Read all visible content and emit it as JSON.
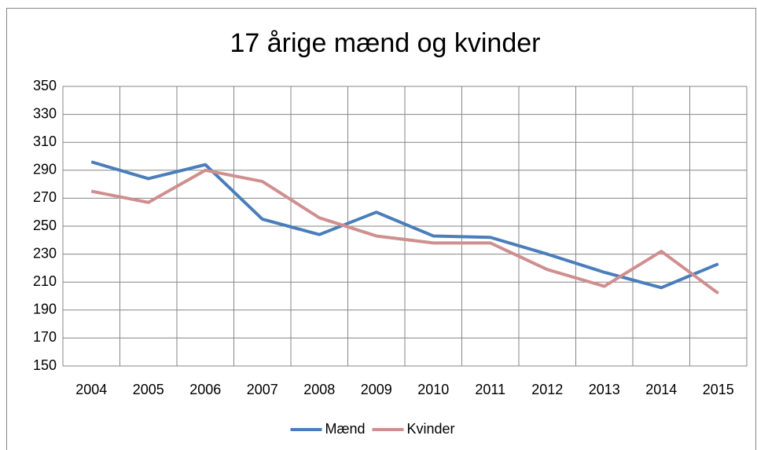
{
  "chart_data": {
    "type": "line",
    "title": "17 årige mænd og kvinder",
    "categories": [
      "2004",
      "2005",
      "2006",
      "2007",
      "2008",
      "2009",
      "2010",
      "2011",
      "2012",
      "2013",
      "2014",
      "2015"
    ],
    "series": [
      {
        "name": "Mænd",
        "color": "#4a7ebb",
        "values": [
          296,
          284,
          294,
          255,
          244,
          260,
          243,
          242,
          230,
          217,
          206,
          223
        ]
      },
      {
        "name": "Kvinder",
        "color": "#cf8f8e",
        "values": [
          275,
          267,
          290,
          282,
          256,
          243,
          238,
          238,
          219,
          207,
          232,
          202
        ]
      }
    ],
    "ylim": [
      150,
      350
    ],
    "yticks": [
      150,
      170,
      190,
      210,
      230,
      250,
      270,
      290,
      310,
      330,
      350
    ],
    "grid": true,
    "legend": "bottom"
  }
}
